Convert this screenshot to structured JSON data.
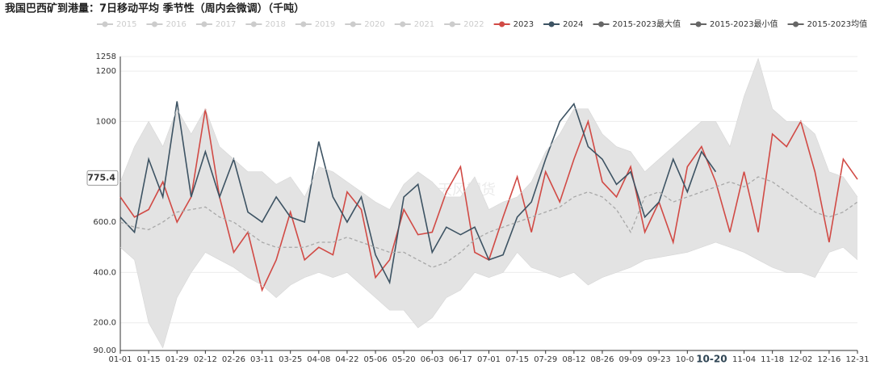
{
  "chart_data": {
    "type": "line",
    "title": "我国巴西矿到港量：7日移动平均 季节性（周内会微调）（千吨）",
    "watermark": "紫金天风期货",
    "inactive_legend": [
      "2015",
      "2016",
      "2017",
      "2018",
      "2019",
      "2020",
      "2021",
      "2022"
    ],
    "inactive_color": "#cccccc",
    "categories": [
      "01-01",
      null,
      "01-15",
      null,
      "01-29",
      null,
      "02-12",
      null,
      "02-26",
      null,
      "03-11",
      null,
      "03-25",
      null,
      "04-08",
      null,
      "04-22",
      null,
      "05-06",
      null,
      "05-20",
      null,
      "06-03",
      null,
      "06-17",
      null,
      "07-01",
      null,
      "07-15",
      null,
      "07-29",
      null,
      "08-12",
      null,
      "08-26",
      null,
      "09-09",
      null,
      "09-23",
      null,
      "10-07",
      null,
      null,
      null,
      "11-04",
      null,
      "11-18",
      null,
      "12-02",
      null,
      "12-16",
      null,
      "12-31"
    ],
    "series": [
      {
        "name": "2023",
        "color": "#d14a45",
        "values": [
          700,
          620,
          650,
          760,
          600,
          700,
          1050,
          700,
          480,
          560,
          330,
          450,
          640,
          450,
          500,
          470,
          720,
          650,
          380,
          450,
          650,
          550,
          560,
          720,
          820,
          480,
          450,
          620,
          780,
          560,
          800,
          680,
          850,
          1000,
          760,
          700,
          820,
          560,
          680,
          520,
          820,
          900,
          760,
          560,
          800,
          560,
          950,
          900,
          1000,
          800,
          520,
          850,
          770
        ]
      },
      {
        "name": "2024",
        "color": "#3d5363",
        "values": [
          620,
          560,
          850,
          700,
          1080,
          700,
          880,
          700,
          850,
          640,
          600,
          700,
          620,
          600,
          920,
          700,
          600,
          700,
          470,
          360,
          700,
          750,
          480,
          580,
          550,
          580,
          450,
          470,
          620,
          680,
          850,
          1000,
          1070,
          900,
          850,
          750,
          800,
          620,
          680,
          850,
          720,
          880,
          800,
          null,
          null,
          null,
          null,
          null,
          null,
          null,
          null,
          null,
          null
        ]
      },
      {
        "name": "2015-2023最大值",
        "color": "#666666",
        "role": "band-max",
        "values": [
          760,
          900,
          1000,
          900,
          1050,
          950,
          1050,
          900,
          850,
          800,
          800,
          750,
          780,
          700,
          820,
          800,
          760,
          720,
          680,
          650,
          750,
          800,
          760,
          700,
          700,
          780,
          650,
          680,
          700,
          760,
          880,
          950,
          1050,
          1050,
          950,
          900,
          880,
          800,
          850,
          900,
          950,
          1000,
          1000,
          900,
          1100,
          1250,
          1050,
          1000,
          1000,
          950,
          800,
          780,
          700
        ]
      },
      {
        "name": "2015-2023最小值",
        "color": "#666666",
        "role": "band-min",
        "values": [
          500,
          450,
          200,
          100,
          300,
          400,
          480,
          450,
          420,
          380,
          350,
          300,
          350,
          380,
          400,
          380,
          400,
          350,
          300,
          250,
          250,
          180,
          220,
          300,
          330,
          400,
          380,
          400,
          480,
          420,
          400,
          380,
          400,
          350,
          380,
          400,
          420,
          450,
          460,
          470,
          480,
          500,
          520,
          500,
          480,
          450,
          420,
          400,
          400,
          380,
          480,
          500,
          450
        ]
      },
      {
        "name": "2015-2023均值",
        "color": "#666666",
        "role": "mean",
        "values": [
          600,
          580,
          570,
          600,
          640,
          650,
          660,
          620,
          600,
          560,
          520,
          500,
          500,
          500,
          520,
          520,
          540,
          520,
          500,
          480,
          480,
          450,
          420,
          440,
          480,
          530,
          560,
          580,
          600,
          620,
          640,
          660,
          700,
          720,
          700,
          650,
          560,
          700,
          720,
          680,
          700,
          720,
          740,
          760,
          740,
          780,
          760,
          720,
          680,
          640,
          620,
          640,
          680
        ]
      }
    ],
    "band_color": "#e3e3e3",
    "ylim": [
      90,
      1258
    ],
    "yticks": [
      {
        "value": 90,
        "label": "90.00"
      },
      {
        "value": 200,
        "label": "200.0"
      },
      {
        "value": 400,
        "label": "400.0"
      },
      {
        "value": 600,
        "label": "600.0"
      },
      1000,
      1200,
      1258
    ],
    "grid": true,
    "axis_pointer": {
      "x": "10-20",
      "y": 775.4
    }
  }
}
